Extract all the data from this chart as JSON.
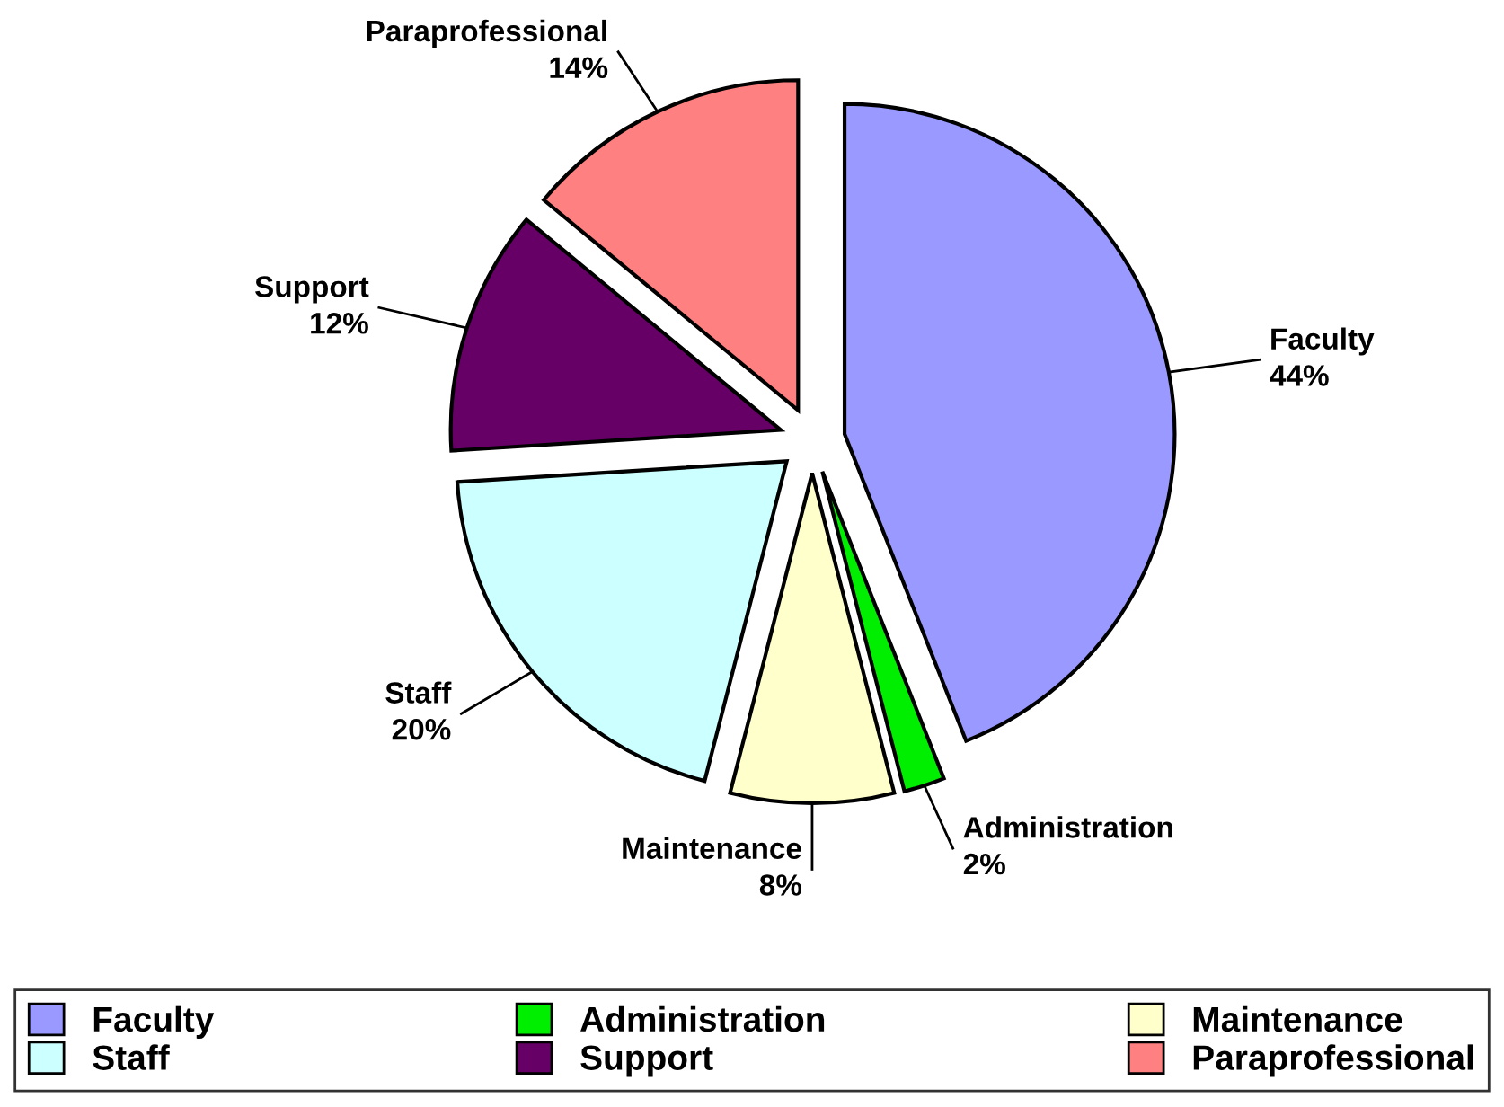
{
  "chart_data": {
    "type": "pie",
    "categories": [
      "Faculty",
      "Administration",
      "Maintenance",
      "Staff",
      "Support",
      "Paraprofessional"
    ],
    "values": [
      44,
      2,
      8,
      20,
      12,
      14
    ],
    "value_labels": [
      "44%",
      "2%",
      "8%",
      "20%",
      "12%",
      "14%"
    ],
    "colors": [
      "#9999ff",
      "#00ee00",
      "#ffffcc",
      "#ccffff",
      "#660066",
      "#ff8080"
    ],
    "legend": "bottom"
  }
}
